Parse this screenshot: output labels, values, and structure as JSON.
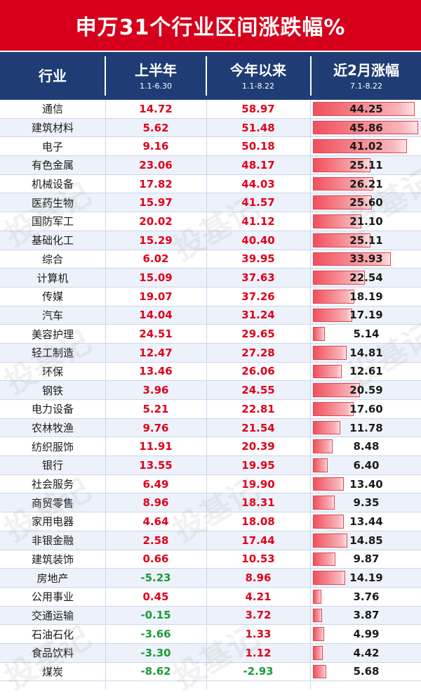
{
  "title": "申万31个行业区间涨跌幅%",
  "header": {
    "col1": "行业",
    "col2": "上半年",
    "col2_sub": "1.1-6.30",
    "col3": "今年以来",
    "col3_sub": "1.1-8.22",
    "col4": "近2月涨幅",
    "col4_sub": "7.1-8.22"
  },
  "watermark": "投基记",
  "colors": {
    "title_bg": "#d6001c",
    "header_bg": "#1f3d74",
    "positive": "#e0001b",
    "negative": "#1a9a3a",
    "bar": "#f0505c"
  },
  "chart_data": {
    "type": "table",
    "bar_max": 45.86,
    "rows": [
      {
        "industry": "通信",
        "h1": "14.72",
        "ytd": "58.97",
        "m2": "44.25"
      },
      {
        "industry": "建筑材料",
        "h1": "5.62",
        "ytd": "51.48",
        "m2": "45.86"
      },
      {
        "industry": "电子",
        "h1": "9.16",
        "ytd": "50.18",
        "m2": "41.02"
      },
      {
        "industry": "有色金属",
        "h1": "23.06",
        "ytd": "48.17",
        "m2": "25.11"
      },
      {
        "industry": "机械设备",
        "h1": "17.82",
        "ytd": "44.03",
        "m2": "26.21"
      },
      {
        "industry": "医药生物",
        "h1": "15.97",
        "ytd": "41.57",
        "m2": "25.60"
      },
      {
        "industry": "国防军工",
        "h1": "20.02",
        "ytd": "41.12",
        "m2": "21.10"
      },
      {
        "industry": "基础化工",
        "h1": "15.29",
        "ytd": "40.40",
        "m2": "25.11"
      },
      {
        "industry": "综合",
        "h1": "6.02",
        "ytd": "39.95",
        "m2": "33.93"
      },
      {
        "industry": "计算机",
        "h1": "15.09",
        "ytd": "37.63",
        "m2": "22.54"
      },
      {
        "industry": "传媒",
        "h1": "19.07",
        "ytd": "37.26",
        "m2": "18.19"
      },
      {
        "industry": "汽车",
        "h1": "14.04",
        "ytd": "31.24",
        "m2": "17.19"
      },
      {
        "industry": "美容护理",
        "h1": "24.51",
        "ytd": "29.65",
        "m2": "5.14"
      },
      {
        "industry": "轻工制造",
        "h1": "12.47",
        "ytd": "27.28",
        "m2": "14.81"
      },
      {
        "industry": "环保",
        "h1": "13.46",
        "ytd": "26.06",
        "m2": "12.61"
      },
      {
        "industry": "钢铁",
        "h1": "3.96",
        "ytd": "24.55",
        "m2": "20.59"
      },
      {
        "industry": "电力设备",
        "h1": "5.21",
        "ytd": "22.81",
        "m2": "17.60"
      },
      {
        "industry": "农林牧渔",
        "h1": "9.76",
        "ytd": "21.54",
        "m2": "11.78"
      },
      {
        "industry": "纺织服饰",
        "h1": "11.91",
        "ytd": "20.39",
        "m2": "8.48"
      },
      {
        "industry": "银行",
        "h1": "13.55",
        "ytd": "19.95",
        "m2": "6.40"
      },
      {
        "industry": "社会服务",
        "h1": "6.49",
        "ytd": "19.90",
        "m2": "13.40"
      },
      {
        "industry": "商贸零售",
        "h1": "8.96",
        "ytd": "18.31",
        "m2": "9.35"
      },
      {
        "industry": "家用电器",
        "h1": "4.64",
        "ytd": "18.08",
        "m2": "13.44"
      },
      {
        "industry": "非银金融",
        "h1": "2.58",
        "ytd": "17.44",
        "m2": "14.85"
      },
      {
        "industry": "建筑装饰",
        "h1": "0.66",
        "ytd": "10.53",
        "m2": "9.87"
      },
      {
        "industry": "房地产",
        "h1": "-5.23",
        "ytd": "8.96",
        "m2": "14.19"
      },
      {
        "industry": "公用事业",
        "h1": "0.45",
        "ytd": "4.21",
        "m2": "3.76"
      },
      {
        "industry": "交通运输",
        "h1": "-0.15",
        "ytd": "3.72",
        "m2": "3.87"
      },
      {
        "industry": "石油石化",
        "h1": "-3.66",
        "ytd": "1.33",
        "m2": "4.99"
      },
      {
        "industry": "食品饮料",
        "h1": "-3.30",
        "ytd": "1.12",
        "m2": "4.42"
      },
      {
        "industry": "煤炭",
        "h1": "-8.62",
        "ytd": "-2.93",
        "m2": "5.68"
      }
    ]
  }
}
